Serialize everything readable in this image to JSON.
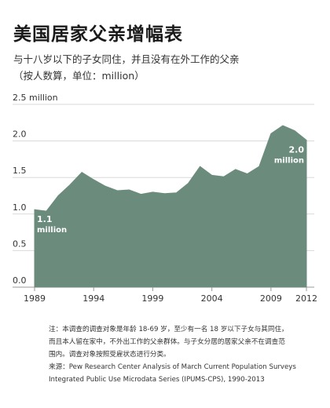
{
  "header": {
    "title": "美国居家父亲增幅表",
    "subtitle_line1": "与十八岁以下的子女同住，并且没有在外工作的父亲",
    "subtitle_line2": "（按人数算，单位：million）"
  },
  "notes": {
    "line1": "注：本调查的调查对象是年龄 18-69 岁，至少有一名 18 岁以下子女与其同住，",
    "line2": "而且本人留在家中，不外出工作的父亲群体。与子女分居的居家父亲不在调查范",
    "line3": "围内。调查对象按照受雇状态进行分类。",
    "line4": "来源：Pew Research Center Analysis of March Current Population Surveys",
    "line5": "Integrated Public Use Microdata Series (IPUMS-CPS), 1990-2013"
  },
  "colors": {
    "area": "#6b8c7d",
    "axis_text": "#333333",
    "grid": "#d9d9d9",
    "label_text": "#ffffff"
  },
  "chart_data": {
    "type": "area",
    "title": "美国居家父亲增幅表",
    "xlabel": "",
    "ylabel": "",
    "xlim": [
      1989,
      2012
    ],
    "ylim": [
      0,
      2.5
    ],
    "x_ticks": [
      1989,
      1994,
      1999,
      2004,
      2009,
      2012
    ],
    "y_ticks": [
      {
        "value": 0,
        "label": "0.0"
      },
      {
        "value": 0.5,
        "label": "0.5"
      },
      {
        "value": 1.0,
        "label": "1.0"
      },
      {
        "value": 1.5,
        "label": "1.5"
      },
      {
        "value": 2.0,
        "label": "2.0"
      },
      {
        "value": 2.5,
        "label": "2.5 million"
      }
    ],
    "grid": true,
    "series": [
      {
        "name": "",
        "x": [
          1989,
          1990,
          1991,
          1992,
          1993,
          1994,
          1995,
          1996,
          1997,
          1998,
          1999,
          2000,
          2001,
          2002,
          2003,
          2004,
          2005,
          2006,
          2007,
          2008,
          2009,
          2010,
          2011,
          2012
        ],
        "values": [
          1.06,
          1.04,
          1.25,
          1.4,
          1.57,
          1.47,
          1.38,
          1.32,
          1.33,
          1.27,
          1.3,
          1.28,
          1.29,
          1.42,
          1.65,
          1.53,
          1.51,
          1.61,
          1.55,
          1.65,
          2.1,
          2.21,
          2.14,
          2.01
        ]
      }
    ],
    "annotations": [
      {
        "x": 1989,
        "y": 1.06,
        "text_line1": "1.1",
        "text_line2": "million",
        "anchor": "start"
      },
      {
        "x": 2012,
        "y": 2.01,
        "text_line1": "2.0",
        "text_line2": "million",
        "anchor": "end"
      }
    ]
  }
}
